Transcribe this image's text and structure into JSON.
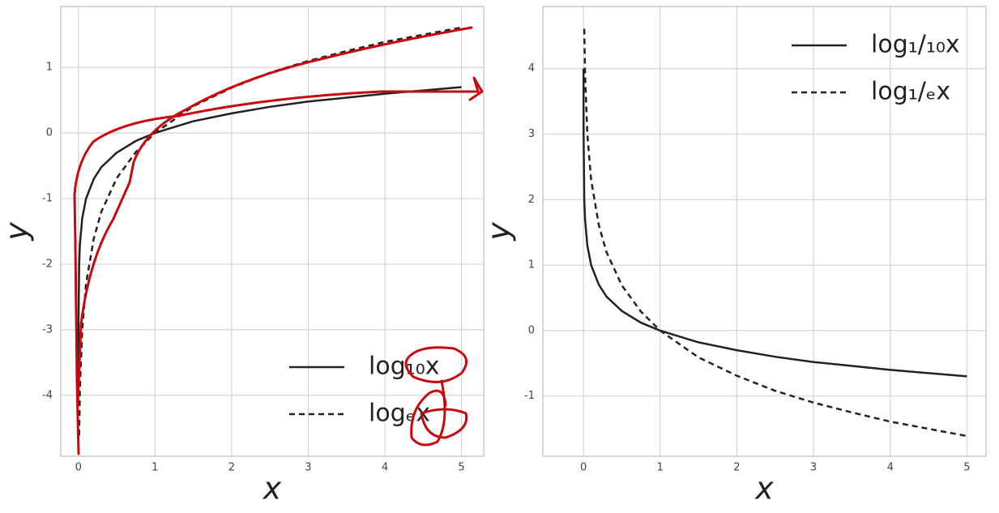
{
  "chart_data": [
    {
      "type": "line",
      "x_label": "x",
      "y_label": "y",
      "x": [
        0.0001,
        0.001,
        0.01,
        0.02,
        0.05,
        0.1,
        0.2,
        0.3,
        0.5,
        0.75,
        1,
        1.5,
        2,
        2.5,
        3,
        3.5,
        4,
        4.5,
        5
      ],
      "series": [
        {
          "name": "log₁₀x",
          "color": "#222222",
          "linestyle": "solid",
          "values": [
            -4,
            -3,
            -2,
            -1.7,
            -1.3,
            -1,
            -0.7,
            -0.52,
            -0.3,
            -0.12,
            0,
            0.18,
            0.3,
            0.4,
            0.48,
            0.54,
            0.6,
            0.65,
            0.7
          ]
        },
        {
          "name": "logₑx",
          "color": "#222222",
          "linestyle": "dashed",
          "values": [
            null,
            null,
            -4.61,
            -3.91,
            -3,
            -2.3,
            -1.61,
            -1.2,
            -0.69,
            -0.29,
            0,
            0.41,
            0.69,
            0.92,
            1.1,
            1.25,
            1.39,
            1.5,
            1.61
          ]
        }
      ],
      "xlim": [
        -0.23,
        5.29
      ],
      "ylim": [
        -4.93,
        1.93
      ],
      "xticks": [
        0,
        1,
        2,
        3,
        4,
        5
      ],
      "yticks": [
        -4,
        -3,
        -2,
        -1,
        0,
        1
      ],
      "grid": true,
      "legend": "lower right"
    },
    {
      "type": "line",
      "x_label": "x",
      "y_label": "y",
      "x": [
        0.0001,
        0.001,
        0.01,
        0.02,
        0.05,
        0.1,
        0.2,
        0.3,
        0.5,
        0.75,
        1,
        1.5,
        2,
        2.5,
        3,
        3.5,
        4,
        4.5,
        5
      ],
      "series": [
        {
          "name": "log₁/₁₀x",
          "color": "#222222",
          "linestyle": "solid",
          "values": [
            4,
            3,
            2,
            1.7,
            1.3,
            1,
            0.7,
            0.52,
            0.3,
            0.12,
            0,
            -0.18,
            -0.3,
            -0.4,
            -0.48,
            -0.54,
            -0.6,
            -0.65,
            -0.7
          ]
        },
        {
          "name": "log₁/ₑx",
          "color": "#222222",
          "linestyle": "dashed",
          "values": [
            null,
            null,
            4.61,
            3.91,
            3,
            2.3,
            1.61,
            1.2,
            0.69,
            0.29,
            0,
            -0.41,
            -0.69,
            -0.92,
            -1.1,
            -1.25,
            -1.39,
            -1.5,
            -1.61
          ]
        }
      ],
      "xlim": [
        -0.53,
        5.25
      ],
      "ylim": [
        -1.92,
        4.95
      ],
      "xticks": [
        0,
        1,
        2,
        3,
        4,
        5
      ],
      "yticks": [
        -1,
        0,
        1,
        2,
        3,
        4
      ],
      "grid": true,
      "legend": "upper right"
    }
  ]
}
